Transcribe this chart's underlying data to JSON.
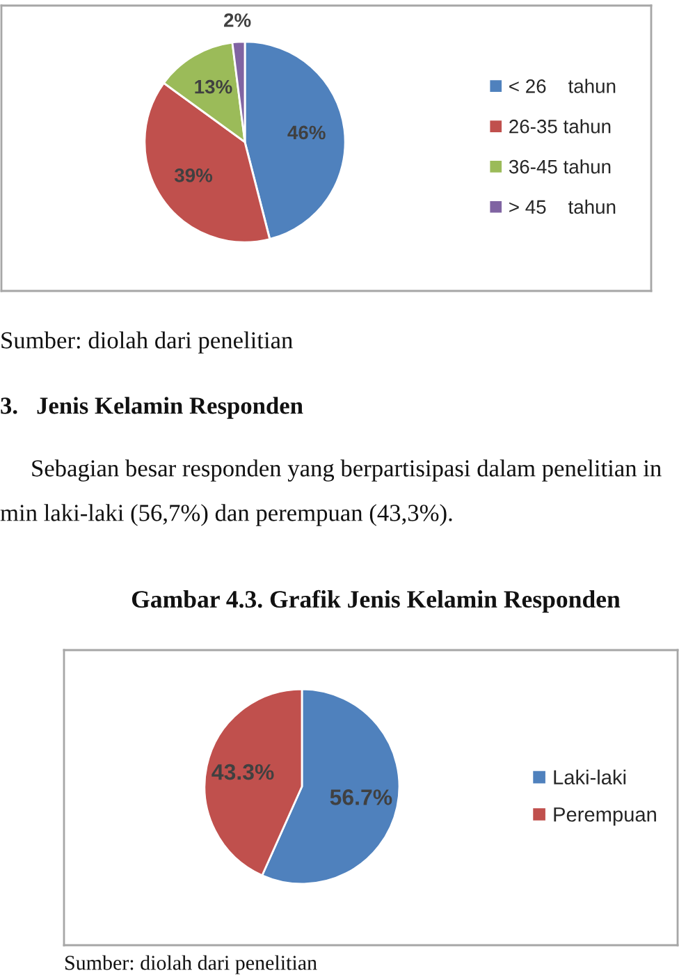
{
  "chart_data": [
    {
      "type": "pie",
      "categories": [
        "< 26    tahun",
        "26-35 tahun",
        "36-45 tahun",
        "> 45    tahun"
      ],
      "values": [
        46,
        39,
        13,
        2
      ],
      "colors": [
        "#4f81bd",
        "#c0504d",
        "#9bbb59",
        "#8064a2"
      ],
      "value_labels": [
        "46%",
        "39%",
        "13%",
        "2%"
      ],
      "legend": "right",
      "annotations": [
        "Sumber: diolah dari penelitian",
        "3.   Jenis Kelamin Responden",
        "Sebagian besar responden yang berpartisipasi dalam penelitian in",
        "min laki-laki (56,7%) dan perempuan (43,3%)."
      ]
    },
    {
      "type": "pie",
      "title": "Gambar 4.3. Grafik Jenis Kelamin Responden",
      "categories": [
        "Laki-laki",
        "Perempuan"
      ],
      "values": [
        56.7,
        43.3
      ],
      "colors": [
        "#4f81bd",
        "#c0504d"
      ],
      "value_labels": [
        "56.7%",
        "43.3%"
      ],
      "legend": "right",
      "annotations": [
        "Sumber: diolah dari penelitian"
      ]
    }
  ]
}
